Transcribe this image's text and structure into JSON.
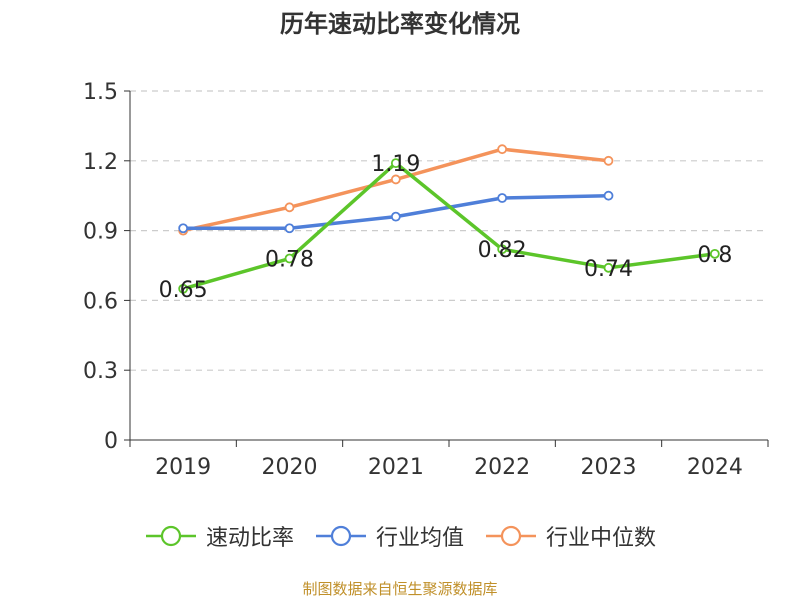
{
  "title": "历年速动比率变化情况",
  "source": "制图数据来自恒生聚源数据库",
  "chart_data": {
    "type": "line",
    "categories": [
      "2019",
      "2020",
      "2021",
      "2022",
      "2023",
      "2024"
    ],
    "ylim": [
      0,
      1.5
    ],
    "yticks": [
      "0",
      "0.3",
      "0.6",
      "0.9",
      "1.2",
      "1.5"
    ],
    "grid": true,
    "legend_position": "bottom",
    "series": [
      {
        "name": "速动比率",
        "color": "#5cc52a",
        "values": [
          0.65,
          0.78,
          1.19,
          0.82,
          0.74,
          0.8
        ],
        "data_labels": [
          "0.65",
          "0.78",
          "1.19",
          "0.82",
          "0.74",
          "0.8"
        ]
      },
      {
        "name": "行业均值",
        "color": "#4f7fd9",
        "values": [
          0.91,
          0.91,
          0.96,
          1.04,
          1.05,
          null
        ]
      },
      {
        "name": "行业中位数",
        "color": "#f4935b",
        "values": [
          0.9,
          1.0,
          1.12,
          1.25,
          1.2,
          null
        ]
      }
    ]
  }
}
